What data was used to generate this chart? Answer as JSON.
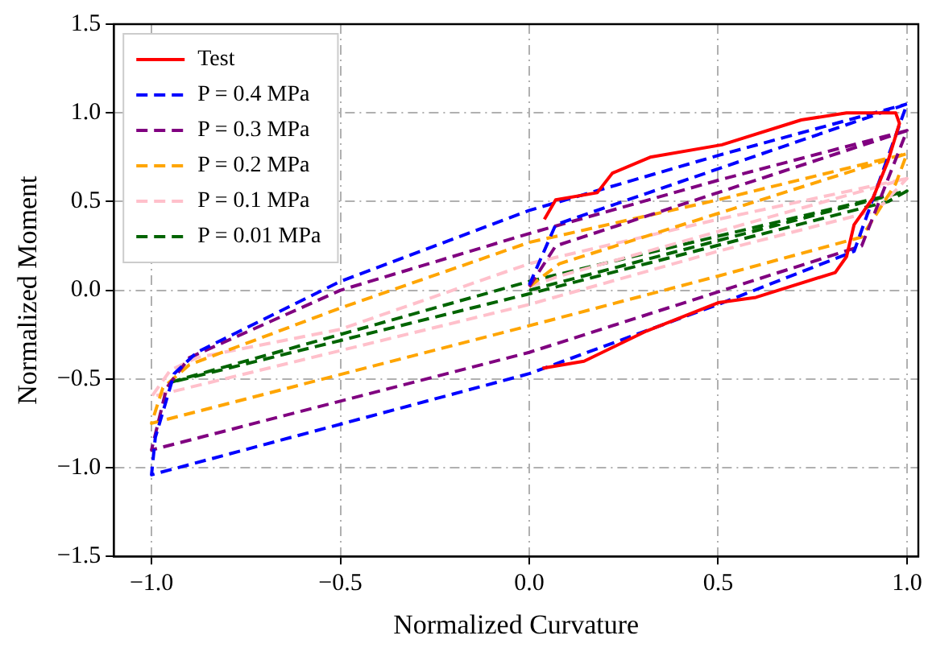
{
  "chart_data": {
    "type": "line",
    "xlabel": "Normalized Curvature",
    "ylabel": "Normalized Moment",
    "xlim": [
      -1.1,
      1.03
    ],
    "ylim": [
      -1.5,
      1.5
    ],
    "xticks": [
      {
        "value": -1,
        "label": "−1.0"
      },
      {
        "value": -0.5,
        "label": "−0.5"
      },
      {
        "value": 0,
        "label": "0.0"
      },
      {
        "value": 0.5,
        "label": "0.5"
      },
      {
        "value": 1,
        "label": "1.0"
      }
    ],
    "yticks": [
      {
        "value": -1.5,
        "label": "−1.5"
      },
      {
        "value": -1,
        "label": "−1.0"
      },
      {
        "value": -0.5,
        "label": "−0.5"
      },
      {
        "value": 0,
        "label": "0.0"
      },
      {
        "value": 0.5,
        "label": "0.5"
      },
      {
        "value": 1,
        "label": "1.0"
      },
      {
        "value": 1.5,
        "label": "1.5"
      }
    ],
    "grid": true,
    "legend": "top left",
    "marker": "none",
    "series": [
      {
        "name": "Test",
        "color": "#ff0000",
        "line_style": "solid",
        "x": [
          0.035,
          0.145,
          0.31,
          0.5,
          0.6,
          0.81,
          0.84,
          0.86,
          0.91,
          0.95,
          0.98,
          0.97,
          0.84,
          0.72,
          0.51,
          0.32,
          0.22,
          0.18,
          0.07,
          0.04
        ],
        "values": [
          -0.44,
          -0.4,
          -0.23,
          -0.07,
          -0.04,
          0.1,
          0.19,
          0.37,
          0.52,
          0.73,
          0.94,
          1.0,
          1.0,
          0.96,
          0.82,
          0.75,
          0.66,
          0.55,
          0.51,
          0.4
        ]
      },
      {
        "name": "P = 0.4 MPa",
        "color": "#0000ff",
        "line_style": "dashed",
        "x": [
          0,
          0.07,
          1,
          0.86,
          0.5,
          0,
          -1,
          -0.99,
          -0.94,
          -0.88,
          -0.5,
          0,
          0.5,
          1
        ],
        "values": [
          0.03,
          0.37,
          1.05,
          0.22,
          -0.08,
          -0.47,
          -1.04,
          -0.83,
          -0.47,
          -0.35,
          0.05,
          0.45,
          0.76,
          1.05
        ]
      },
      {
        "name": "P = 0.3 MPa",
        "color": "#800080",
        "line_style": "dashed",
        "x": [
          0,
          0.07,
          1,
          0.88,
          0,
          -1,
          -0.96,
          -0.9,
          -0.5,
          0,
          0.5,
          1
        ],
        "values": [
          0.02,
          0.25,
          0.9,
          0.25,
          -0.35,
          -0.9,
          -0.55,
          -0.38,
          0.0,
          0.32,
          0.62,
          0.9
        ]
      },
      {
        "name": "P = 0.2 MPa",
        "color": "#ffa500",
        "line_style": "dashed",
        "x": [
          0,
          0.08,
          1,
          0.97,
          0.88,
          0.5,
          0,
          -1,
          -0.97,
          -0.9,
          -0.5,
          0,
          0.5,
          1
        ],
        "values": [
          0.02,
          0.15,
          0.77,
          0.6,
          0.3,
          0.08,
          -0.2,
          -0.75,
          -0.55,
          -0.42,
          -0.1,
          0.27,
          0.51,
          0.77
        ]
      },
      {
        "name": "P = 0.1 MPa",
        "color": "#ffc0cb",
        "line_style": "dashed",
        "x": [
          0,
          0.08,
          1,
          0.92,
          0.5,
          0,
          -1,
          -0.95,
          -0.88,
          -0.5,
          0,
          0.5,
          1
        ],
        "values": [
          0.02,
          0.08,
          0.63,
          0.45,
          0.22,
          -0.08,
          -0.6,
          -0.45,
          -0.38,
          -0.22,
          0.15,
          0.4,
          0.63
        ]
      },
      {
        "name": "P = 0.01 MPa",
        "color": "#006400",
        "line_style": "dashed",
        "x": [
          0,
          1,
          0.95,
          0,
          -0.95,
          -0.92,
          0,
          1
        ],
        "values": [
          0,
          0.56,
          0.5,
          -0.02,
          -0.52,
          -0.5,
          0.05,
          0.56
        ]
      }
    ]
  }
}
